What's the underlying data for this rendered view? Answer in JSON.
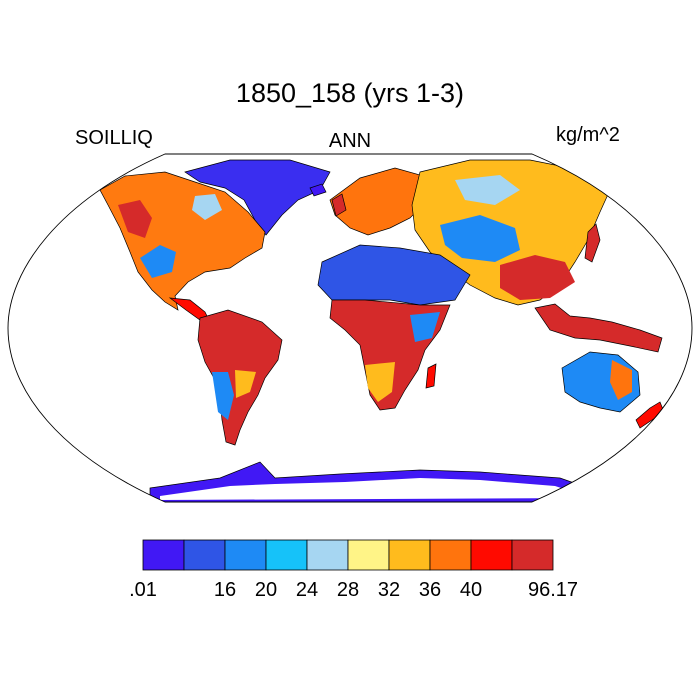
{
  "title": "1850_158 (yrs 1-3)",
  "left_label": "SOILLIQ",
  "center_label": "ANN",
  "right_label": "kg/m^2",
  "projection": "Robinson",
  "colorbar": {
    "colors": [
      "#4118f5",
      "#2f55e6",
      "#1e8af5",
      "#16c2f9",
      "#a6d6f2",
      "#fff487",
      "#ffbb1d",
      "#ff740d",
      "#ff0a00",
      "#d52a2a"
    ],
    "tick_labels": [
      ".01",
      "16",
      "20",
      "24",
      "28",
      "32",
      "36",
      "40",
      "96.17"
    ],
    "tick_boundary_index": [
      0,
      2,
      3,
      4,
      5,
      6,
      7,
      8,
      10
    ]
  }
}
